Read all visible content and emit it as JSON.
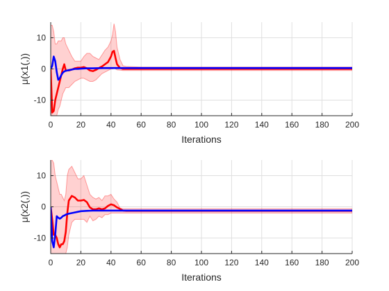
{
  "chart_data": [
    {
      "type": "line",
      "xlabel": "Iterations",
      "ylabel": "μ(x1(,))",
      "xlim": [
        0,
        200
      ],
      "ylim": [
        -15,
        15
      ],
      "xticks": [
        0,
        20,
        40,
        60,
        80,
        100,
        120,
        140,
        160,
        180,
        200
      ],
      "yticks": [
        -10,
        0,
        10
      ],
      "grid": true,
      "series": [
        {
          "color": "#ff0000",
          "x": [
            0,
            1,
            2,
            3,
            4,
            5,
            6,
            7,
            8,
            9,
            10,
            12,
            14,
            16,
            18,
            20,
            22,
            24,
            26,
            28,
            30,
            32,
            34,
            36,
            38,
            40,
            41,
            42,
            43,
            44,
            46,
            48,
            50,
            55,
            60,
            70,
            80,
            100,
            120,
            140,
            160,
            180,
            200
          ],
          "y": [
            0,
            -14,
            -13.5,
            -10,
            -8,
            -6,
            -4,
            -2,
            0,
            1.5,
            -0.5,
            -0.5,
            -0.2,
            0.2,
            0.4,
            0.4,
            0.6,
            0.2,
            -0.5,
            -0.7,
            -0.3,
            0.3,
            0.8,
            1.5,
            2.2,
            4,
            5.5,
            5.8,
            3.5,
            1.5,
            0.3,
            0,
            0,
            0,
            0,
            0,
            0,
            0,
            0,
            0,
            0,
            0,
            0
          ],
          "band_upper": [
            14,
            14,
            12,
            8,
            8,
            9,
            9,
            9,
            10,
            10,
            8,
            6,
            4,
            2.5,
            2.5,
            2.5,
            4,
            5,
            5,
            4,
            3.5,
            3,
            4.5,
            6,
            7,
            9,
            11,
            14.5,
            12,
            7,
            3,
            1,
            0.8,
            0.7,
            0.6,
            0.6,
            0.6,
            0.6,
            0.6,
            0.6,
            0.6,
            0.6,
            0.6
          ],
          "band_lower": [
            -14,
            -15,
            -15,
            -15,
            -15,
            -13,
            -12,
            -10,
            -8,
            -7,
            -6,
            -6,
            -5,
            -4,
            -3.5,
            -3,
            -3,
            -3.5,
            -4,
            -4,
            -3.5,
            -2.5,
            -1.5,
            -1,
            -0.5,
            0,
            0,
            0.3,
            0,
            -0.3,
            -0.4,
            -0.5,
            -0.5,
            -0.5,
            -0.5,
            -0.5,
            -0.5,
            -0.5,
            -0.5,
            -0.5,
            -0.5,
            -0.5,
            -0.5
          ]
        },
        {
          "color": "#0000ff",
          "x": [
            0,
            1,
            2,
            3,
            4,
            5,
            6,
            7,
            8,
            9,
            10,
            12,
            14,
            16,
            18,
            20,
            24,
            28,
            35,
            45,
            60,
            80,
            100,
            120,
            140,
            160,
            180,
            200
          ],
          "y": [
            0,
            1,
            4,
            2.5,
            -1,
            -3.5,
            -3,
            -2,
            -1.2,
            -0.8,
            -0.6,
            -0.4,
            -0.2,
            0,
            0,
            0.1,
            0.2,
            0.2,
            0.3,
            0.3,
            0.3,
            0.3,
            0.3,
            0.3,
            0.3,
            0.3,
            0.3,
            0.3
          ]
        }
      ]
    },
    {
      "type": "line",
      "xlabel": "Iterations",
      "ylabel": "μ(x2(,))",
      "xlim": [
        0,
        200
      ],
      "ylim": [
        -15,
        15
      ],
      "xticks": [
        0,
        20,
        40,
        60,
        80,
        100,
        120,
        140,
        160,
        180,
        200
      ],
      "yticks": [
        -10,
        0,
        10
      ],
      "grid": true,
      "series": [
        {
          "color": "#ff0000",
          "x": [
            0,
            1,
            2,
            3,
            4,
            5,
            6,
            7,
            8,
            9,
            10,
            11,
            12,
            14,
            16,
            18,
            20,
            22,
            24,
            26,
            28,
            30,
            32,
            34,
            36,
            38,
            40,
            42,
            44,
            46,
            48,
            50,
            55,
            60,
            70,
            80,
            100,
            120,
            140,
            160,
            180,
            200
          ],
          "y": [
            0,
            -4,
            -9,
            -9,
            -10,
            -12,
            -13,
            -12,
            -12,
            -11,
            -8,
            -2,
            2,
            3.5,
            3,
            2,
            2,
            2.2,
            1.5,
            -0.2,
            -0.8,
            -0.8,
            -0.5,
            -0.8,
            -0.5,
            0.3,
            0.8,
            0.5,
            -0.2,
            -0.7,
            -1.2,
            -1.3,
            -1.3,
            -1.3,
            -1.3,
            -1.3,
            -1.3,
            -1.3,
            -1.3,
            -1.3,
            -1.3,
            -1.3
          ],
          "band_upper": [
            15,
            15,
            14,
            10,
            8,
            6,
            4,
            4,
            3,
            2,
            4,
            10,
            12,
            13,
            11,
            9,
            9,
            10,
            7,
            4,
            3,
            2.5,
            3,
            2,
            3.5,
            3.5,
            4,
            2.5,
            1.5,
            -0.4,
            -0.6,
            -0.6,
            -0.6,
            -0.6,
            -0.6,
            -0.6,
            -0.6,
            -0.6,
            -0.6,
            -0.6,
            -0.6,
            -0.6
          ],
          "band_lower": [
            -15,
            -15,
            -15,
            -15,
            -15,
            -15,
            -15,
            -15,
            -15,
            -15,
            -15,
            -13,
            -9,
            -5,
            -4,
            -4,
            -4,
            -4,
            -5,
            -3,
            -4.5,
            -4,
            -3,
            -3.5,
            -2.5,
            -2.5,
            -2,
            -2,
            -2,
            -2,
            -2,
            -2,
            -2,
            -2,
            -2,
            -2,
            -2,
            -2,
            -2,
            -2,
            -2,
            -2
          ]
        },
        {
          "color": "#0000ff",
          "x": [
            0,
            1,
            2,
            3,
            4,
            5,
            6,
            7,
            8,
            9,
            10,
            12,
            14,
            16,
            18,
            20,
            24,
            28,
            35,
            45,
            60,
            80,
            100,
            120,
            140,
            160,
            180,
            200
          ],
          "y": [
            0,
            -11,
            -13,
            -9,
            -3,
            -3.5,
            -3.8,
            -3.5,
            -3,
            -2.8,
            -2.5,
            -2.2,
            -2,
            -1.8,
            -1.6,
            -1.4,
            -1.3,
            -1.2,
            -1.2,
            -1.2,
            -1.2,
            -1.2,
            -1.2,
            -1.2,
            -1.2,
            -1.2,
            -1.2,
            -1.2
          ]
        }
      ]
    }
  ]
}
